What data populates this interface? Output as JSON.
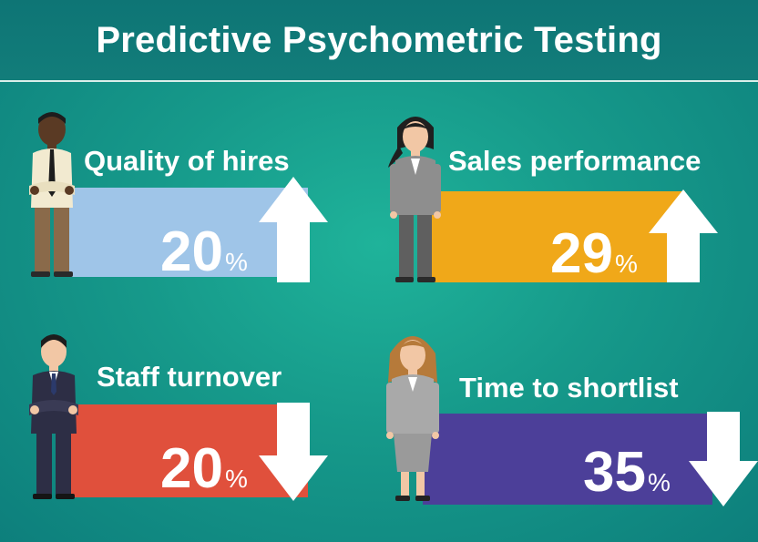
{
  "title": "Predictive Psychometric Testing",
  "stats": [
    {
      "label": "Quality of hires",
      "value": "20",
      "unit": "%",
      "direction": "up",
      "color": "#9fc5e8"
    },
    {
      "label": "Sales performance",
      "value": "29",
      "unit": "%",
      "direction": "up",
      "color": "#f0a819"
    },
    {
      "label": "Staff turnover",
      "value": "20",
      "unit": "%",
      "direction": "down",
      "color": "#e0503c"
    },
    {
      "label": "Time to shortlist",
      "value": "35",
      "unit": "%",
      "direction": "down",
      "color": "#4c3f99"
    }
  ],
  "icons": [
    "man-in-tie-icon",
    "woman-in-suit-icon",
    "businessman-icon",
    "businesswoman-icon",
    "arrow-up-icon",
    "arrow-down-icon"
  ]
}
